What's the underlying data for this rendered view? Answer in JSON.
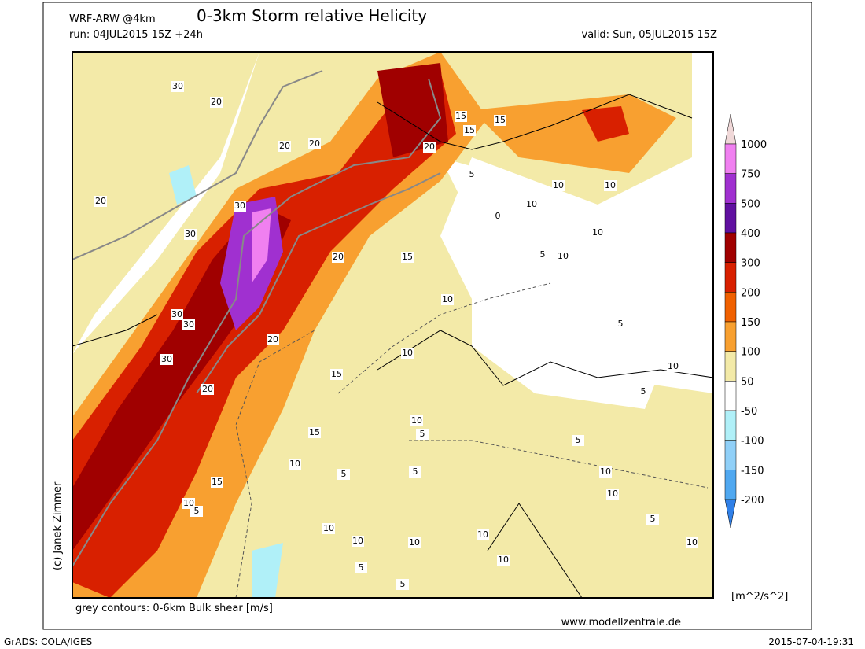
{
  "header": {
    "model": "WRF-ARW @4km",
    "title": "0-3km Storm relative Helicity",
    "run": "run: 04JUL2015 15Z +24h",
    "valid": "valid: Sun, 05JUL2015 15Z"
  },
  "map": {
    "contour_labels": [
      "30",
      "20",
      "20",
      "20",
      "30",
      "30",
      "20",
      "20",
      "15",
      "30",
      "30",
      "20",
      "30",
      "20",
      "15",
      "10",
      "15",
      "10",
      "5",
      "10",
      "5",
      "5",
      "15",
      "10",
      "5",
      "15",
      "15",
      "15",
      "20",
      "5",
      "10",
      "10",
      "10",
      "10",
      "5",
      "10",
      "0",
      "10",
      "5",
      "10",
      "5",
      "5",
      "10",
      "10",
      "5",
      "10",
      "10",
      "10",
      "5",
      "5",
      "10",
      "10",
      "10"
    ]
  },
  "colorbar": {
    "labels": [
      "1000",
      "750",
      "500",
      "400",
      "300",
      "200",
      "150",
      "100",
      "50",
      "-50",
      "-100",
      "-150",
      "-200"
    ],
    "colors": [
      "#f0d8d8",
      "#f080f0",
      "#a030d0",
      "#6010a0",
      "#a00000",
      "#d82000",
      "#f06000",
      "#f8a030",
      "#f3eaa8",
      "#ffffff",
      "#b0f0f8",
      "#90d0f8",
      "#50a8f0",
      "#3080e8"
    ],
    "unit": "[m^2/s^2]"
  },
  "footer": {
    "contours_note": "grey contours: 0-6km Bulk shear [m/s]",
    "website": "www.modellzentrale.de",
    "copyright": "(c) Janek Zimmer",
    "grads": "GrADS: COLA/IGES",
    "timestamp": "2015-07-04-19:31"
  }
}
